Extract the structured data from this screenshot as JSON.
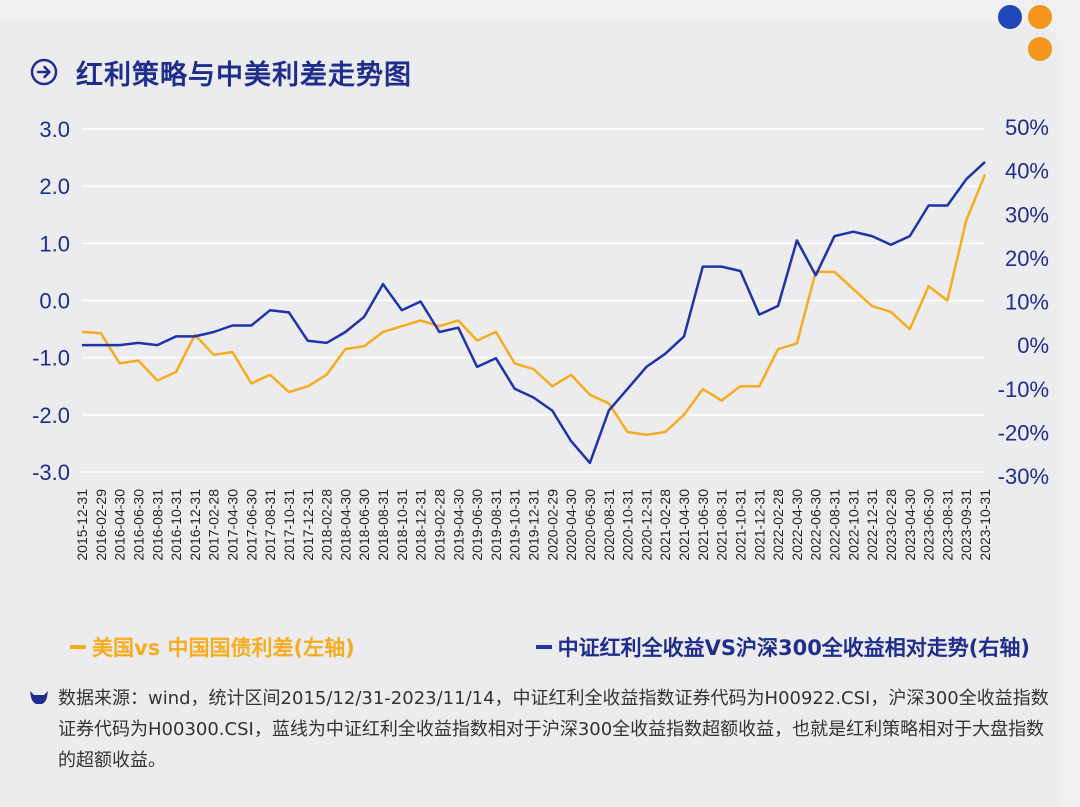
{
  "title": "红利策略与中美利差走势图",
  "legend": {
    "left": "美国vs 中国国债利差(左轴)",
    "right": "中证红利全收益VS沪深300全收益相对走势(右轴)"
  },
  "note": "数据来源：wind，统计区间2015/12/31-2023/11/14，中证红利全收益指数证券代码为H00922.CSI，沪深300全收益指数证券代码为H00300.CSI，蓝线为中证红利全收益指数相对于沪深300全收益指数超额收益，也就是红利策略相对于大盘指数的超额收益。",
  "colors": {
    "accent_blue": "#1f2d8c",
    "spread": "#f5ac1e",
    "relative": "#1e34a8",
    "dot_blue": "#1f47b8",
    "dot_orange": "#f2961e"
  },
  "icons": [
    "arrow-circle-icon",
    "bull-icon"
  ],
  "chart_data": {
    "type": "line",
    "categories": [
      "2015-12-31",
      "2016-02-29",
      "2016-04-30",
      "2016-06-30",
      "2016-08-31",
      "2016-10-31",
      "2016-12-31",
      "2017-02-28",
      "2017-04-30",
      "2017-06-30",
      "2017-08-31",
      "2017-10-31",
      "2017-12-31",
      "2018-02-28",
      "2018-04-30",
      "2018-06-30",
      "2018-08-31",
      "2018-10-31",
      "2018-12-31",
      "2019-02-28",
      "2019-04-30",
      "2019-06-30",
      "2019-08-31",
      "2019-10-31",
      "2019-12-31",
      "2020-02-29",
      "2020-04-30",
      "2020-06-30",
      "2020-08-31",
      "2020-10-31",
      "2020-12-31",
      "2021-02-28",
      "2021-04-30",
      "2021-06-30",
      "2021-08-31",
      "2021-10-31",
      "2021-12-31",
      "2022-02-28",
      "2022-04-30",
      "2022-06-30",
      "2022-08-31",
      "2022-10-31",
      "2022-12-31",
      "2023-02-28",
      "2023-04-30",
      "2023-06-30",
      "2023-08-31",
      "2023-09-31",
      "2023-10-31"
    ],
    "x_tick_labels": [
      "2015-12-31",
      "2016-02-29",
      "2016-04-30",
      "2016-06-30",
      "2016-08-31",
      "2016-10-31",
      "2016-12-31",
      "2017-02-28",
      "2017-04-30",
      "2017-06-30",
      "2017-08-31",
      "2017-10-31",
      "2017-12-31",
      "2018-02-28",
      "2018-04-30",
      "2018-06-30",
      "2018-08-31",
      "2018-10-31",
      "2018-12-31",
      "2019-02-28",
      "2019-04-30",
      "2019-06-30",
      "2019-08-31",
      "2019-10-31",
      "2019-12-31",
      "2020-02-29",
      "2020-04-30",
      "2020-06-30",
      "2020-08-31",
      "2020-10-31",
      "2020-12-31",
      "2021-02-28",
      "2021-04-30",
      "2021-06-30",
      "2021-08-31",
      "2021-10-31",
      "2021-12-31",
      "2022-02-28",
      "2022-04-30",
      "2022-06-30",
      "2022-08-31",
      "2022-10-31",
      "2022-12-31",
      "2023-02-28",
      "2023-04-30",
      "2023-06-30",
      "2023-08-31",
      "2023-09-31",
      "2023-10-31"
    ],
    "y_left": {
      "ticks": [
        "3.0",
        "2.0",
        "1.0",
        "0.0",
        "-1.0",
        "-2.0",
        "-3.0"
      ],
      "ylim": [
        -3,
        3
      ]
    },
    "y_right": {
      "ticks": [
        "50%",
        "40%",
        "30%",
        "20%",
        "10%",
        "0%",
        "-10%",
        "-20%",
        "-30%"
      ],
      "ylim": [
        -30,
        50
      ]
    },
    "series": [
      {
        "name": "美国vs 中国国债利差(左轴)",
        "axis": "left",
        "values": [
          -0.55,
          -0.57,
          -1.1,
          -1.05,
          -1.4,
          -1.25,
          -0.6,
          -0.95,
          -0.9,
          -1.45,
          -1.3,
          -1.6,
          -1.5,
          -1.3,
          -0.85,
          -0.8,
          -0.55,
          -0.45,
          -0.35,
          -0.45,
          -0.35,
          -0.7,
          -0.55,
          -1.1,
          -1.2,
          -1.5,
          -1.3,
          -1.65,
          -1.8,
          -2.3,
          -2.35,
          -2.3,
          -2.0,
          -1.55,
          -1.75,
          -1.5,
          -1.5,
          -0.85,
          -0.75,
          0.5,
          0.5,
          0.2,
          -0.1,
          -0.2,
          -0.5,
          0.25,
          0.0,
          1.4,
          2.2
        ]
      },
      {
        "name": "中证红利全收益VS沪深300全收益相对走势(右轴)",
        "axis": "right",
        "values": [
          0,
          0,
          0,
          0.5,
          0,
          2,
          2,
          3,
          4.5,
          4.5,
          8,
          7.5,
          1,
          0.5,
          3,
          6.5,
          14,
          8,
          10,
          3,
          4,
          -5,
          -3,
          -10,
          -12,
          -15,
          -22,
          -27,
          -15,
          -10,
          -5,
          -2,
          2,
          18,
          18,
          17,
          7,
          9,
          24,
          16,
          25,
          26,
          25,
          23,
          25,
          32,
          32,
          38,
          42
        ]
      }
    ]
  }
}
